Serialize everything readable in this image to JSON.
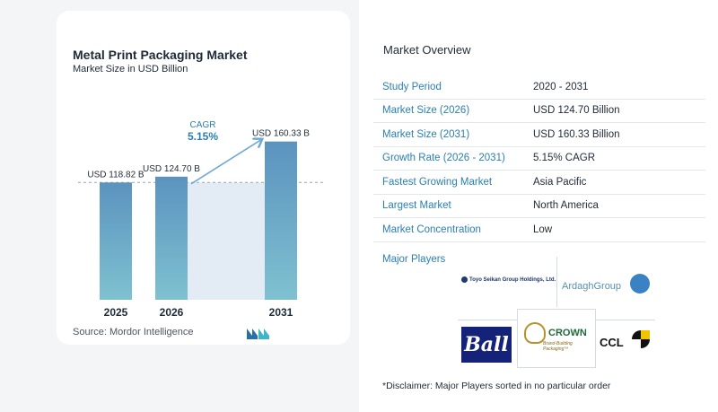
{
  "chart_panel": {
    "title": "Metal Print Packaging Market",
    "subtitle": "Market Size in USD Billion",
    "source": "Source:  Mordor Intelligence",
    "cagr_label": "CAGR",
    "cagr_value": "5.15%"
  },
  "chart_data": {
    "type": "bar",
    "title": "Metal Print Packaging Market",
    "subtitle": "Market Size in USD Billion",
    "categories": [
      "2025",
      "2026",
      "2031"
    ],
    "values": [
      118.82,
      124.7,
      160.33
    ],
    "data_labels": [
      "USD 118.82 B",
      "USD 124.70 B",
      "USD 160.33 B"
    ],
    "colors": {
      "bar_top": "#5b93bf",
      "bar_bottom": "#7fc1d0",
      "band": "#e3ecf5",
      "arrow": "#6fa9d0",
      "cagr": "#2a7fb2"
    }
  },
  "overview": {
    "title": "Market Overview",
    "rows": [
      {
        "label": "Study Period",
        "value": "2020 - 2031"
      },
      {
        "label": "Market Size (2026)",
        "value": "USD 124.70 Billion"
      },
      {
        "label": "Market Size (2031)",
        "value": "USD 160.33 Billion"
      },
      {
        "label": "Growth Rate (2026 - 2031)",
        "value": "5.15% CAGR"
      },
      {
        "label": "Fastest Growing Market",
        "value": "Asia Pacific"
      },
      {
        "label": "Largest Market",
        "value": "North America"
      },
      {
        "label": "Market Concentration",
        "value": "Low"
      }
    ],
    "players_label": "Major Players",
    "players": {
      "toyo": "Toyo Seikan Group Holdings, Ltd.",
      "ardagh": "ArdaghGroup",
      "ball": "Ball",
      "crown": "CROWN",
      "crown_tagline": "Brand-Building Packaging™",
      "ccl": "CCL"
    },
    "disclaimer": "*Disclaimer: Major Players sorted in no particular order"
  }
}
